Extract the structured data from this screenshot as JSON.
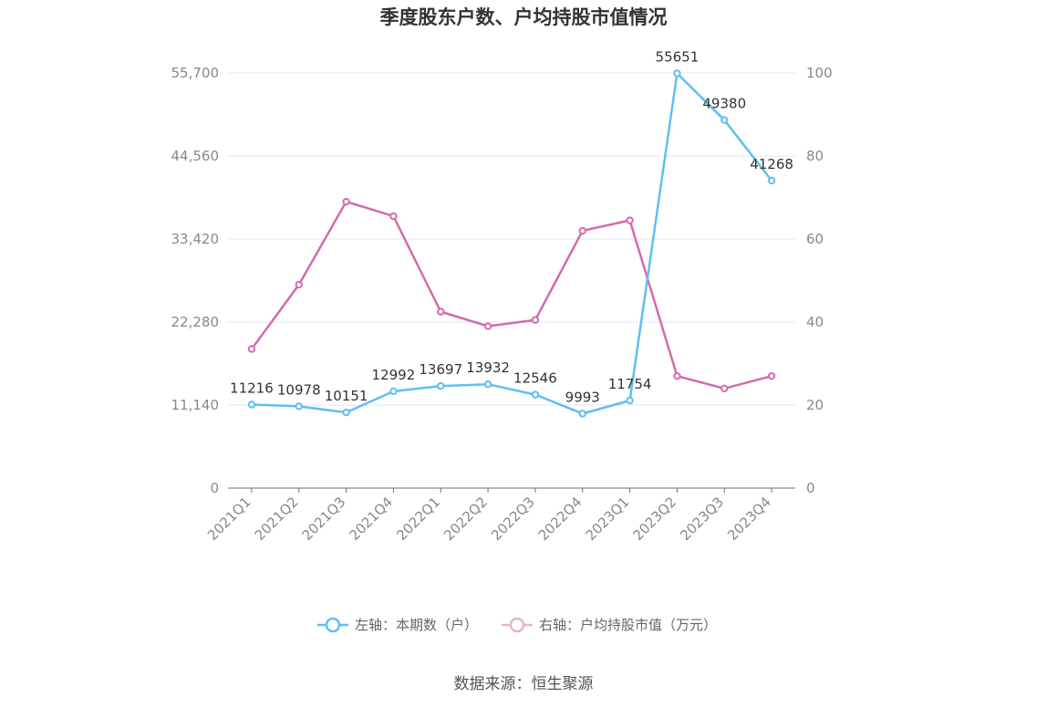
{
  "chart_data": {
    "type": "line",
    "title": "季度股东户数、户均持股市值情况",
    "categories": [
      "2021Q1",
      "2021Q2",
      "2021Q3",
      "2021Q4",
      "2022Q1",
      "2022Q2",
      "2022Q3",
      "2022Q4",
      "2023Q1",
      "2023Q2",
      "2023Q3",
      "2023Q4"
    ],
    "left_axis": {
      "min": 0,
      "max": 55700,
      "ticks": [
        0,
        11140,
        22280,
        33420,
        44560,
        55700
      ],
      "tick_labels": [
        "0",
        "11,140",
        "22,280",
        "33,420",
        "44,560",
        "55,700"
      ]
    },
    "right_axis": {
      "min": 0,
      "max": 100,
      "ticks": [
        0,
        20,
        40,
        60,
        80,
        100
      ],
      "tick_labels": [
        "0",
        "20",
        "40",
        "60",
        "80",
        "100"
      ]
    },
    "grid": true,
    "legend_position": "bottom",
    "series": [
      {
        "name": "左轴：本期数（户）",
        "axis": "left",
        "color": "#5bc0f0",
        "values": [
          11216,
          10978,
          10151,
          12992,
          13697,
          13932,
          12546,
          9993,
          11754,
          55651,
          49380,
          41268
        ],
        "data_labels": [
          "11216",
          "10978",
          "10151",
          "12992",
          "13697",
          "13932",
          "12546",
          "9993",
          "11754",
          "55651",
          "49380",
          "41268"
        ]
      },
      {
        "name": "右轴：户均持股市值（万元）",
        "axis": "right",
        "color": "#d46aae",
        "values": [
          33.5,
          49,
          69,
          65.5,
          42.5,
          39,
          40.5,
          62,
          64.5,
          27,
          24,
          27
        ]
      }
    ],
    "source": "数据来源：恒生聚源"
  }
}
